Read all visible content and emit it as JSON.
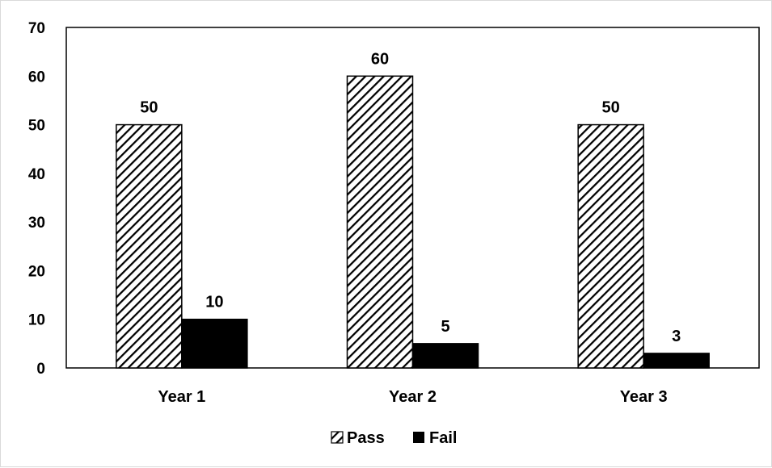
{
  "chart_data": {
    "type": "bar",
    "categories": [
      "Year 1",
      "Year 2",
      "Year 3"
    ],
    "series": [
      {
        "name": "Pass",
        "values": [
          50,
          60,
          50
        ],
        "fill": "hatched",
        "color": "#000000"
      },
      {
        "name": "Fail",
        "values": [
          10,
          5,
          3
        ],
        "fill": "solid",
        "color": "#000000"
      }
    ],
    "data_labels": [
      [
        "50",
        "60",
        "50"
      ],
      [
        "10",
        "5",
        "3"
      ]
    ],
    "yticks": [
      "0",
      "10",
      "20",
      "30",
      "40",
      "50",
      "60",
      "70"
    ],
    "ylim": [
      0,
      70
    ],
    "title": "",
    "xlabel": "",
    "ylabel": "",
    "grid": false,
    "legend_position": "bottom"
  }
}
